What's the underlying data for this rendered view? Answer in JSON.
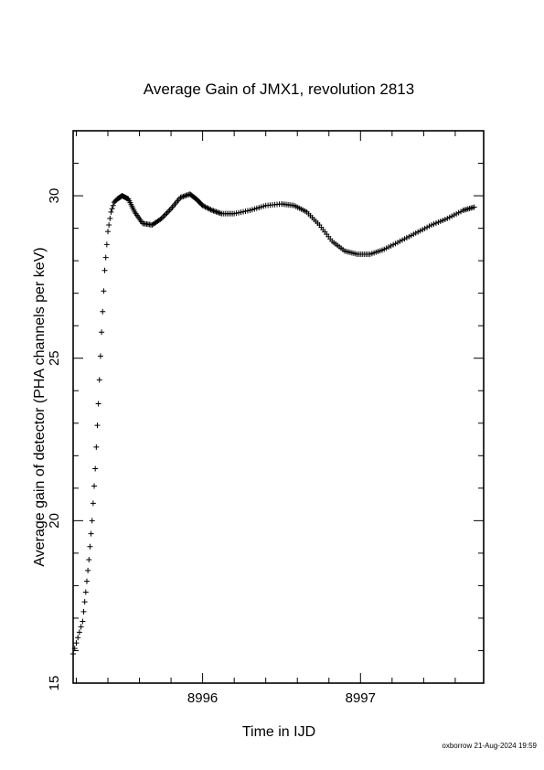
{
  "chart_data": {
    "type": "scatter",
    "title": "Average Gain of JMX1, revolution 2813",
    "xlabel": "Time in IJD",
    "ylabel": "Average gain of detector (PHA channels per keV)",
    "xlim": [
      8995.18,
      8997.78
    ],
    "ylim": [
      15,
      32
    ],
    "x_ticks": [
      8996,
      8997
    ],
    "y_ticks": [
      15,
      20,
      25,
      30
    ],
    "marker": "plus",
    "grid": false,
    "series": [
      {
        "x": [
          8995.18,
          8995.21,
          8995.24,
          8995.26,
          8995.28,
          8995.3,
          8995.32,
          8995.34,
          8995.36,
          8995.38,
          8995.4,
          8995.42,
          8995.44,
          8995.46,
          8995.49,
          8995.53,
          8995.57,
          8995.62,
          8995.68,
          8995.74,
          8995.8,
          8995.86,
          8995.92,
          8995.96,
          8996.0,
          8996.06,
          8996.12,
          8996.2,
          8996.3,
          8996.4,
          8996.5,
          8996.58,
          8996.66,
          8996.74,
          8996.82,
          8996.9,
          8996.98,
          8997.06,
          8997.15,
          8997.25,
          8997.35,
          8997.45,
          8997.55,
          8997.65,
          8997.72
        ],
        "y": [
          15.9,
          16.4,
          16.9,
          17.8,
          18.8,
          20.0,
          21.6,
          23.6,
          25.8,
          27.7,
          28.9,
          29.5,
          29.8,
          29.9,
          30.0,
          29.9,
          29.5,
          29.15,
          29.1,
          29.3,
          29.6,
          29.95,
          30.05,
          29.9,
          29.7,
          29.55,
          29.45,
          29.45,
          29.55,
          29.7,
          29.75,
          29.7,
          29.5,
          29.1,
          28.6,
          28.3,
          28.2,
          28.2,
          28.35,
          28.6,
          28.85,
          29.1,
          29.3,
          29.55,
          29.65
        ]
      }
    ]
  },
  "footer": {
    "credit": "oxborrow 21-Aug-2024 19:59"
  }
}
